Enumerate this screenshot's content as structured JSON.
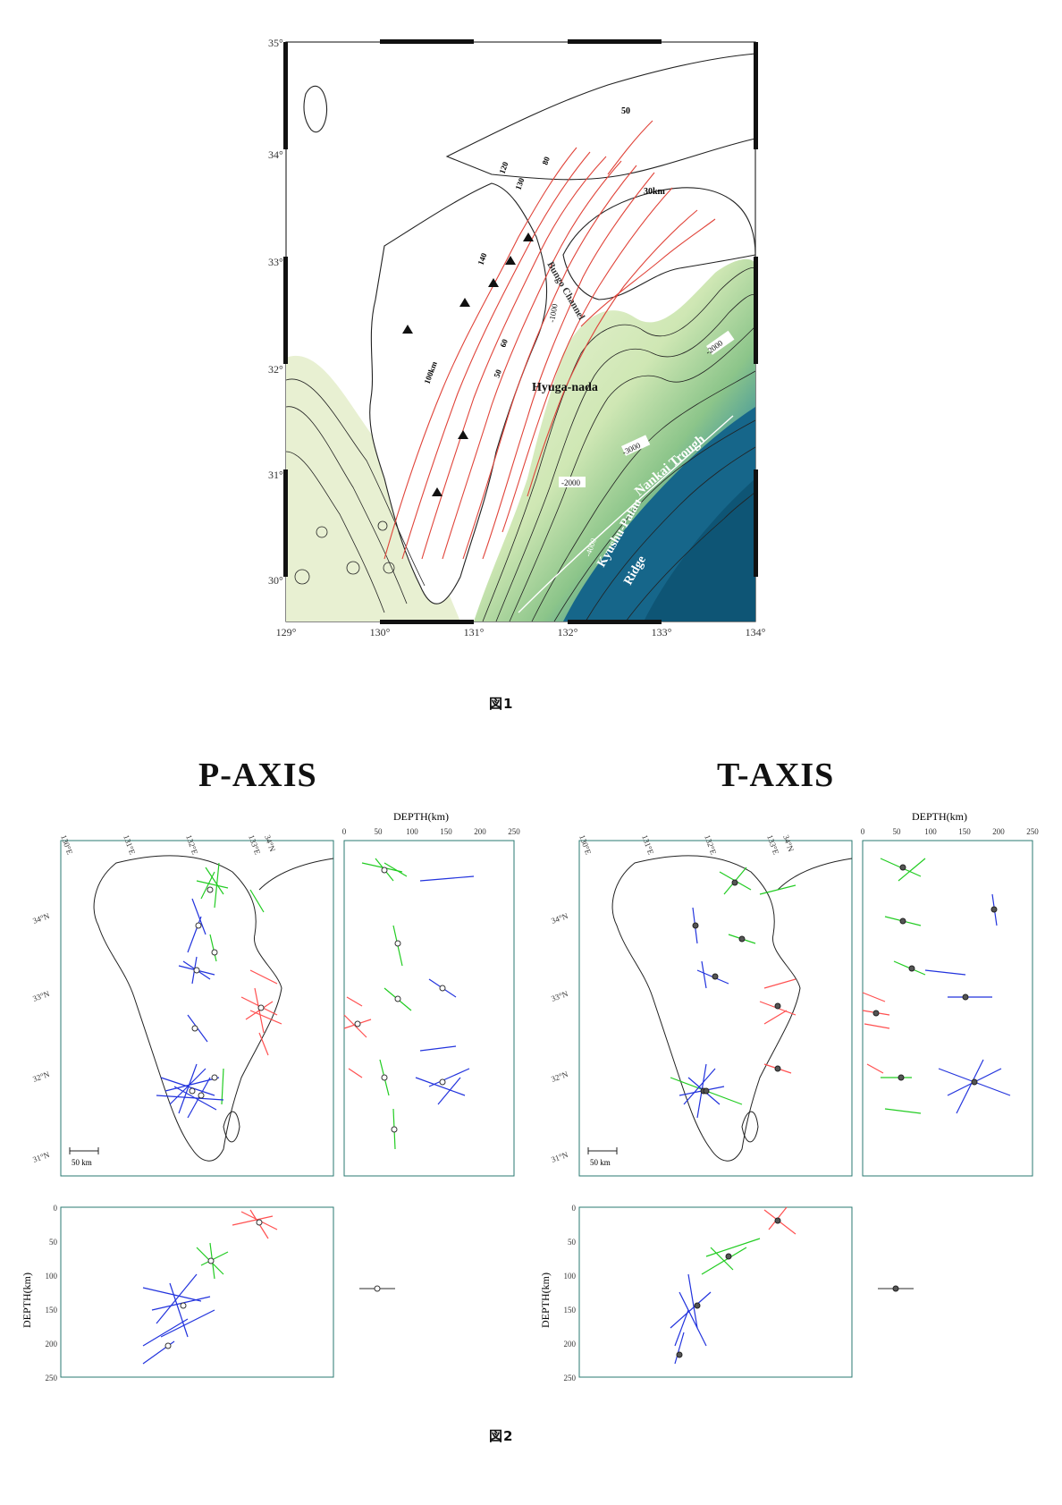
{
  "figure1": {
    "caption": "図1",
    "lat_ticks": [
      "30°",
      "31°",
      "32°",
      "33°",
      "34°",
      "35°"
    ],
    "lon_ticks": [
      "129°",
      "130°",
      "131°",
      "132°",
      "133°",
      "134°"
    ],
    "labels": {
      "hyuga": "Hyuga-nada",
      "nankai": "Nankai Trough",
      "kyushu_palau": "Kyushu-Palau",
      "ridge": "Ridge",
      "bungo": "Bungo Channel",
      "km30": "30km",
      "km100": "100km",
      "d50": "50",
      "d60": "60",
      "d80": "80",
      "d120": "120",
      "d130": "130",
      "d140": "140",
      "b2000a": "-2000",
      "b2000b": "-2000",
      "b3000": "-3000",
      "b4000": "-4000",
      "b1000": "-1000"
    },
    "colors": {
      "depth_contour": "#e0443a",
      "shallow": "#eef4d4",
      "mid": "#9fcf86",
      "deep": "#13647f",
      "land": "#ffffff"
    }
  },
  "figure2": {
    "caption": "図2",
    "p_title": "P-AXIS",
    "t_title": "T-AXIS",
    "lon_ticks": [
      "130°E",
      "131°E",
      "132°E",
      "133°E",
      "34°N"
    ],
    "lat_ticks": [
      "34°N",
      "33°N",
      "32°N",
      "31°N"
    ],
    "depth_title": "DEPTH(km)",
    "depth_ticks": [
      "0",
      "50",
      "100",
      "150",
      "200",
      "250"
    ],
    "scale_label": "50 km",
    "colors": {
      "shallow": "#ff5050",
      "intermediate": "#22cc22",
      "deep": "#2233dd"
    }
  }
}
